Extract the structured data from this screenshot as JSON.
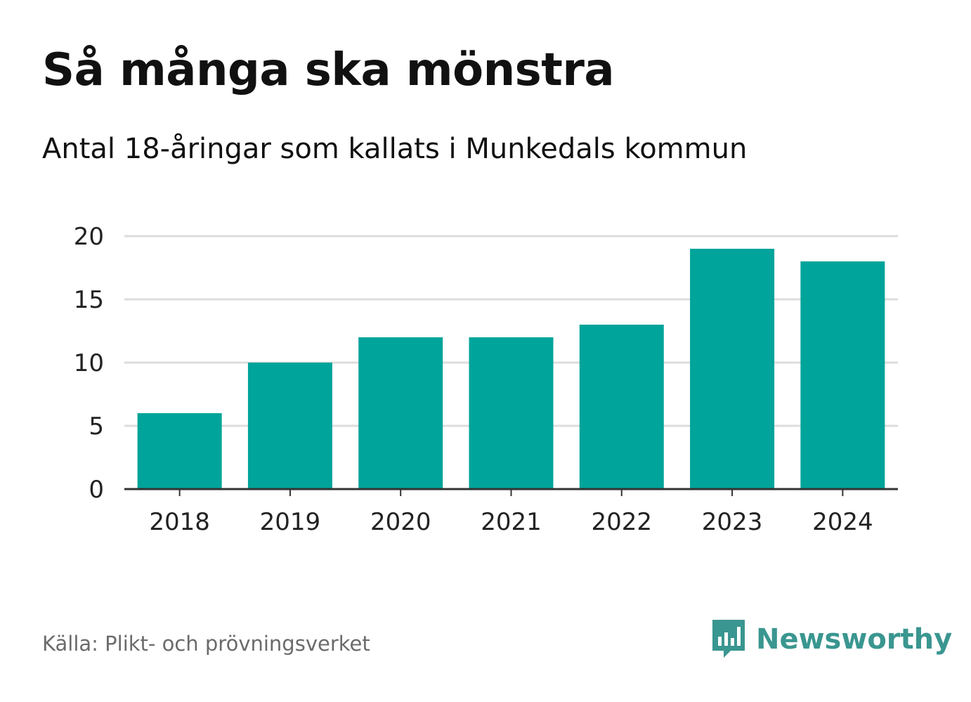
{
  "header": {
    "title": "Så många ska mönstra",
    "subtitle": "Antal 18-åringar som kallats i Munkedals kommun"
  },
  "footer": {
    "source": "Källa: Plikt- och prövningsverket",
    "brand": "Newsworthy",
    "brand_icon": "newsworthy-logo-icon"
  },
  "colors": {
    "bar": "#00a49a",
    "grid": "#dddddd",
    "axis": "#333333",
    "text": "#111111",
    "muted": "#6b6b6b",
    "brand": "#3a9690"
  },
  "chart_data": {
    "type": "bar",
    "title": "Så många ska mönstra",
    "subtitle": "Antal 18-åringar som kallats i Munkedals kommun",
    "xlabel": "",
    "ylabel": "",
    "categories": [
      "2018",
      "2019",
      "2020",
      "2021",
      "2022",
      "2023",
      "2024"
    ],
    "values": [
      6,
      10,
      12,
      12,
      13,
      19,
      18
    ],
    "ylim": [
      0,
      20
    ],
    "yticks": [
      0,
      5,
      10,
      15,
      20
    ],
    "grid": true,
    "legend": "none"
  }
}
